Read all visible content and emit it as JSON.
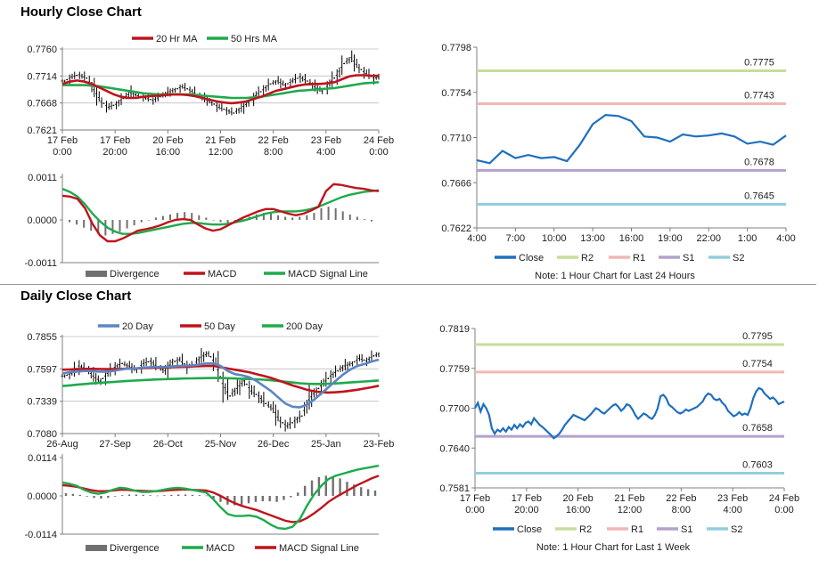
{
  "sections": {
    "hourly_title": "Hourly Close Chart",
    "daily_title": "Daily Close Chart"
  },
  "colors": {
    "red": "#c0131b",
    "green": "#1eaa4c",
    "blue": "#1f6fbf",
    "steel": "#5b86c4",
    "r2": "#c5de9b",
    "r1": "#f3b5b5",
    "s1": "#b3a1cf",
    "s2": "#93cddd",
    "hist": "#707070"
  },
  "chart_data": [
    {
      "id": "hourly-price",
      "type": "line",
      "title": "",
      "legend": [
        "20 Hr MA",
        "50 Hrs MA"
      ],
      "legend_placement": "top",
      "y_ticks": [
        "0.7760",
        "0.7714",
        "0.7668",
        "0.7621"
      ],
      "ylim": [
        0.7621,
        0.776
      ],
      "x_ticks": [
        [
          "17 Feb",
          "0:00"
        ],
        [
          "17 Feb",
          "20:00"
        ],
        [
          "20 Feb",
          "16:00"
        ],
        [
          "21 Feb",
          "12:00"
        ],
        [
          "22 Feb",
          "8:00"
        ],
        [
          "23 Feb",
          "4:00"
        ],
        [
          "24 Feb",
          "0:00"
        ]
      ],
      "close": [
        0.7705,
        0.7712,
        0.7716,
        0.771,
        0.769,
        0.767,
        0.766,
        0.7665,
        0.7675,
        0.7685,
        0.768,
        0.7676,
        0.7672,
        0.7678,
        0.7685,
        0.769,
        0.7695,
        0.769,
        0.7682,
        0.7675,
        0.7668,
        0.766,
        0.7655,
        0.765,
        0.7658,
        0.7668,
        0.768,
        0.769,
        0.77,
        0.7705,
        0.7698,
        0.7705,
        0.7712,
        0.7705,
        0.7695,
        0.7688,
        0.77,
        0.7715,
        0.7735,
        0.7745,
        0.7728,
        0.7718,
        0.771,
        0.7712
      ],
      "series": [
        {
          "name": "20 Hr MA",
          "values": [
            0.77,
            0.7704,
            0.7706,
            0.7704,
            0.77,
            0.7694,
            0.7688,
            0.7682,
            0.7678,
            0.7676,
            0.7676,
            0.7678,
            0.7679,
            0.768,
            0.7681,
            0.7682,
            0.7682,
            0.7681,
            0.7679,
            0.7676,
            0.7673,
            0.767,
            0.7668,
            0.7667,
            0.7668,
            0.767,
            0.7674,
            0.7678,
            0.7683,
            0.7688,
            0.7691,
            0.7694,
            0.7697,
            0.7699,
            0.77,
            0.77,
            0.7701,
            0.7703,
            0.7708,
            0.7713,
            0.7715,
            0.7715,
            0.7714,
            0.7714
          ]
        },
        {
          "name": "50 Hrs MA",
          "values": [
            0.7698,
            0.7698,
            0.7698,
            0.7698,
            0.7697,
            0.7696,
            0.7694,
            0.7692,
            0.769,
            0.7688,
            0.7686,
            0.7684,
            0.7683,
            0.7682,
            0.7682,
            0.7682,
            0.7682,
            0.7682,
            0.7681,
            0.768,
            0.7679,
            0.7678,
            0.7677,
            0.7676,
            0.7676,
            0.7676,
            0.7677,
            0.7678,
            0.768,
            0.7682,
            0.7684,
            0.7686,
            0.7688,
            0.7689,
            0.769,
            0.7691,
            0.7692,
            0.7693,
            0.7695,
            0.7697,
            0.7699,
            0.7701,
            0.7702,
            0.7703
          ]
        }
      ]
    },
    {
      "id": "hourly-macd",
      "type": "line",
      "legend": [
        "Divergence",
        "MACD",
        "MACD Signal Line"
      ],
      "legend_placement": "bottom",
      "y_ticks": [
        "0.0011",
        "0.0000",
        "-0.0011"
      ],
      "ylim": [
        -0.0011,
        0.0011
      ],
      "divergence": [
        -6e-05,
        -0.00012,
        -0.0002,
        -0.00028,
        -0.00036,
        -0.0004,
        -0.00036,
        -0.0003,
        -0.00022,
        -0.00014,
        -6e-05,
        0.0,
        6e-05,
        0.0001,
        0.00014,
        0.00018,
        0.0002,
        0.00018,
        0.00012,
        6e-05,
        0.0,
        -6e-05,
        -0.0001,
        -6e-05,
        2e-05,
        8e-05,
        0.00014,
        0.00018,
        0.00016,
        0.00012,
        8e-05,
        6e-05,
        8e-05,
        0.00012,
        0.00018,
        0.0003,
        0.00034,
        0.0003,
        0.00022,
        0.00014,
        8e-05,
        2e-05,
        -4e-05
      ],
      "series": [
        {
          "name": "MACD",
          "values": [
            0.00062,
            0.0006,
            0.00054,
            0.0003,
            -0.0001,
            -0.0004,
            -0.00055,
            -0.00055,
            -0.00048,
            -0.00038,
            -0.00028,
            -0.00024,
            -0.0002,
            -0.00014,
            -6e-05,
            0.0,
            2e-05,
            0.0,
            -0.00012,
            -0.00022,
            -0.00028,
            -0.00024,
            -0.00014,
            -4e-05,
            6e-05,
            0.00014,
            0.00022,
            0.00028,
            0.00028,
            0.00022,
            0.00016,
            0.00012,
            0.00016,
            0.00024,
            0.00034,
            0.00074,
            0.00092,
            0.0009,
            0.00086,
            0.00082,
            0.0008,
            0.00076,
            0.00074
          ]
        },
        {
          "name": "MACD Signal Line",
          "values": [
            0.0008,
            0.00072,
            0.0006,
            0.0004,
            0.00016,
            -4e-05,
            -0.0002,
            -0.0003,
            -0.00036,
            -0.00036,
            -0.00034,
            -0.0003,
            -0.00026,
            -0.00022,
            -0.00018,
            -0.00014,
            -0.0001,
            -8e-05,
            -8e-05,
            -0.0001,
            -0.00012,
            -0.00012,
            -0.0001,
            -6e-05,
            -2e-05,
            4e-05,
            0.0001,
            0.00016,
            0.0002,
            0.00022,
            0.00022,
            0.00022,
            0.00024,
            0.00028,
            0.00034,
            0.00042,
            0.0005,
            0.00058,
            0.00064,
            0.00068,
            0.00072,
            0.00074,
            0.00076
          ]
        }
      ]
    },
    {
      "id": "hourly-24h",
      "type": "line",
      "note": "Note: 1 Hour Chart for Last 24 Hours",
      "legend": [
        "Close",
        "R2",
        "R1",
        "S1",
        "S2"
      ],
      "legend_placement": "bottom",
      "y_ticks": [
        "0.7798",
        "0.7754",
        "0.7710",
        "0.7666",
        "0.7622"
      ],
      "ylim": [
        0.7622,
        0.7798
      ],
      "x_ticks": [
        "4:00",
        "7:00",
        "10:00",
        "13:00",
        "16:00",
        "19:00",
        "22:00",
        "1:00",
        "4:00"
      ],
      "levels": [
        {
          "name": "R2",
          "value": 0.7775,
          "label": "0.7775"
        },
        {
          "name": "R1",
          "value": 0.7743,
          "label": "0.7743"
        },
        {
          "name": "S1",
          "value": 0.7678,
          "label": "0.7678"
        },
        {
          "name": "S2",
          "value": 0.7645,
          "label": "0.7645"
        }
      ],
      "series": [
        {
          "name": "Close",
          "values": [
            0.7688,
            0.7685,
            0.7697,
            0.769,
            0.7693,
            0.769,
            0.7691,
            0.7687,
            0.7703,
            0.7723,
            0.7732,
            0.7731,
            0.7726,
            0.7711,
            0.771,
            0.7706,
            0.7713,
            0.7711,
            0.7712,
            0.7714,
            0.7711,
            0.7704,
            0.7706,
            0.7703,
            0.7712
          ]
        }
      ]
    },
    {
      "id": "daily-price",
      "type": "line",
      "legend": [
        "20 Day",
        "50 Day",
        "200 Day"
      ],
      "legend_placement": "top",
      "y_ticks": [
        "0.7855",
        "0.7597",
        "0.7339",
        "0.7080"
      ],
      "ylim": [
        0.708,
        0.7855
      ],
      "x_ticks": [
        "26-Aug",
        "27-Sep",
        "26-Oct",
        "25-Nov",
        "26-Dec",
        "25-Jan",
        "23-Feb"
      ],
      "close": [
        0.754,
        0.756,
        0.762,
        0.76,
        0.754,
        0.75,
        0.756,
        0.761,
        0.764,
        0.762,
        0.759,
        0.764,
        0.766,
        0.761,
        0.758,
        0.765,
        0.767,
        0.762,
        0.763,
        0.769,
        0.772,
        0.764,
        0.748,
        0.738,
        0.744,
        0.75,
        0.742,
        0.738,
        0.732,
        0.728,
        0.718,
        0.714,
        0.718,
        0.722,
        0.735,
        0.742,
        0.748,
        0.754,
        0.758,
        0.762,
        0.764,
        0.768,
        0.766,
        0.77,
        0.772
      ],
      "series": [
        {
          "name": "20 Day",
          "values": [
            0.756,
            0.757,
            0.7575,
            0.758,
            0.758,
            0.7575,
            0.7575,
            0.758,
            0.759,
            0.7598,
            0.76,
            0.7605,
            0.761,
            0.7612,
            0.7612,
            0.7615,
            0.762,
            0.7622,
            0.7624,
            0.763,
            0.764,
            0.764,
            0.762,
            0.758,
            0.7555,
            0.7545,
            0.753,
            0.75,
            0.746,
            0.742,
            0.737,
            0.732,
            0.7295,
            0.729,
            0.731,
            0.735,
            0.74,
            0.745,
            0.75,
            0.755,
            0.759,
            0.762,
            0.7635,
            0.7655,
            0.767
          ]
        },
        {
          "name": "50 Day",
          "values": [
            0.759,
            0.7592,
            0.7594,
            0.7596,
            0.7597,
            0.7596,
            0.7595,
            0.7595,
            0.7596,
            0.7598,
            0.76,
            0.7602,
            0.7605,
            0.7607,
            0.7608,
            0.761,
            0.7612,
            0.7614,
            0.7616,
            0.7618,
            0.762,
            0.762,
            0.7612,
            0.76,
            0.759,
            0.758,
            0.757,
            0.7555,
            0.754,
            0.7525,
            0.7505,
            0.7485,
            0.7465,
            0.7448,
            0.743,
            0.7418,
            0.741,
            0.7408,
            0.741,
            0.7415,
            0.7422,
            0.743,
            0.744,
            0.745,
            0.7462
          ]
        },
        {
          "name": "200 Day",
          "values": [
            0.746,
            0.7465,
            0.747,
            0.7475,
            0.748,
            0.7484,
            0.7488,
            0.7492,
            0.7496,
            0.75,
            0.7503,
            0.7506,
            0.7509,
            0.7512,
            0.7514,
            0.7516,
            0.7518,
            0.752,
            0.7521,
            0.7522,
            0.7523,
            0.7524,
            0.7524,
            0.7522,
            0.752,
            0.7518,
            0.7516,
            0.7514,
            0.751,
            0.7506,
            0.75,
            0.7494,
            0.7488,
            0.7482,
            0.7478,
            0.7476,
            0.7476,
            0.7478,
            0.748,
            0.7484,
            0.7488,
            0.7492,
            0.7496,
            0.75,
            0.7504
          ]
        }
      ]
    },
    {
      "id": "daily-macd",
      "type": "line",
      "legend": [
        "Divergence",
        "MACD",
        "MACD Signal Line"
      ],
      "legend_placement": "bottom",
      "y_ticks": [
        "0.0114",
        "0.0000",
        "-0.0114"
      ],
      "ylim": [
        -0.0114,
        0.0114
      ],
      "divergence": [
        0.0008,
        0.0006,
        0.0003,
        -0.0002,
        -0.0006,
        -0.0008,
        -0.0006,
        -0.0002,
        0.0002,
        0.0004,
        0.0004,
        0.0003,
        0.0002,
        0.0001,
        0.0002,
        0.0003,
        0.0004,
        0.0004,
        0.0003,
        0.0002,
        0.0001,
        -0.0008,
        -0.0018,
        -0.0026,
        -0.0028,
        -0.0026,
        -0.0022,
        -0.0018,
        -0.0016,
        -0.0016,
        -0.0018,
        -0.0012,
        -0.0004,
        0.001,
        0.003,
        0.0046,
        0.0056,
        0.006,
        0.0058,
        0.0052,
        0.0042,
        0.0034,
        0.0026,
        0.002,
        0.0016
      ],
      "series": [
        {
          "name": "MACD",
          "values": [
            0.004,
            0.0036,
            0.003,
            0.0018,
            0.001,
            0.0006,
            0.001,
            0.0018,
            0.0024,
            0.0022,
            0.0016,
            0.0012,
            0.0012,
            0.0014,
            0.0018,
            0.0022,
            0.0024,
            0.0022,
            0.0018,
            0.0014,
            0.001,
            -0.001,
            -0.0034,
            -0.0054,
            -0.006,
            -0.006,
            -0.0058,
            -0.0062,
            -0.0072,
            -0.0086,
            -0.0096,
            -0.0098,
            -0.0092,
            -0.007,
            -0.003,
            0.0004,
            0.003,
            0.005,
            0.006,
            0.0066,
            0.0072,
            0.0078,
            0.0082,
            0.0086,
            0.009
          ]
        },
        {
          "name": "MACD Signal Line",
          "values": [
            0.0032,
            0.003,
            0.0027,
            0.0022,
            0.0017,
            0.0014,
            0.0014,
            0.0016,
            0.0018,
            0.0018,
            0.0016,
            0.0015,
            0.0014,
            0.0014,
            0.0015,
            0.0017,
            0.0018,
            0.0019,
            0.0018,
            0.0017,
            0.0016,
            0.001,
            0.0,
            -0.0012,
            -0.0022,
            -0.003,
            -0.0036,
            -0.0042,
            -0.005,
            -0.0058,
            -0.0066,
            -0.0074,
            -0.0078,
            -0.0076,
            -0.0066,
            -0.0052,
            -0.0036,
            -0.0018,
            -0.0004,
            0.0008,
            0.002,
            0.0032,
            0.0042,
            0.0052,
            0.006
          ]
        }
      ]
    },
    {
      "id": "daily-week",
      "type": "line",
      "note": "Note: 1 Hour Chart for Last 1 Week",
      "legend": [
        "Close",
        "R2",
        "R1",
        "S1",
        "S2"
      ],
      "legend_placement": "bottom",
      "y_ticks": [
        "0.7819",
        "0.7759",
        "0.7700",
        "0.7640",
        "0.7581"
      ],
      "ylim": [
        0.7581,
        0.7819
      ],
      "x_ticks": [
        [
          "17 Feb",
          "0:00"
        ],
        [
          "17 Feb",
          "20:00"
        ],
        [
          "20 Feb",
          "16:00"
        ],
        [
          "21 Feb",
          "12:00"
        ],
        [
          "22 Feb",
          "8:00"
        ],
        [
          "23 Feb",
          "4:00"
        ],
        [
          "24 Feb",
          "0:00"
        ]
      ],
      "levels": [
        {
          "name": "R2",
          "value": 0.7795,
          "label": "0.7795"
        },
        {
          "name": "R1",
          "value": 0.7754,
          "label": "0.7754"
        },
        {
          "name": "S1",
          "value": 0.7658,
          "label": "0.7658"
        },
        {
          "name": "S2",
          "value": 0.7603,
          "label": "0.7603"
        }
      ],
      "series": [
        {
          "name": "Close",
          "values": [
            0.77,
            0.7708,
            0.7695,
            0.7706,
            0.77,
            0.769,
            0.767,
            0.7662,
            0.7668,
            0.7665,
            0.767,
            0.7665,
            0.7672,
            0.7668,
            0.7675,
            0.767,
            0.7676,
            0.7672,
            0.7678,
            0.768,
            0.7676,
            0.7685,
            0.768,
            0.7675,
            0.7672,
            0.7668,
            0.7664,
            0.766,
            0.7655,
            0.7658,
            0.7662,
            0.7668,
            0.7675,
            0.768,
            0.7685,
            0.769,
            0.7688,
            0.7686,
            0.7684,
            0.7682,
            0.7686,
            0.769,
            0.7695,
            0.77,
            0.7698,
            0.7694,
            0.7692,
            0.7696,
            0.77,
            0.7704,
            0.7706,
            0.7702,
            0.7696,
            0.77,
            0.7706,
            0.7704,
            0.7698,
            0.769,
            0.7684,
            0.7688,
            0.7692,
            0.769,
            0.7686,
            0.7684,
            0.769,
            0.77,
            0.7718,
            0.772,
            0.7715,
            0.7705,
            0.7702,
            0.7698,
            0.7694,
            0.7692,
            0.7694,
            0.7698,
            0.7696,
            0.7698,
            0.77,
            0.7702,
            0.7706,
            0.771,
            0.7718,
            0.7722,
            0.772,
            0.7714,
            0.7712,
            0.7714,
            0.7708,
            0.7704,
            0.7696,
            0.7692,
            0.7688,
            0.769,
            0.7694,
            0.769,
            0.7692,
            0.769,
            0.77,
            0.7715,
            0.7725,
            0.773,
            0.7728,
            0.7722,
            0.7718,
            0.7714,
            0.7716,
            0.7712,
            0.7706,
            0.7708,
            0.771
          ]
        }
      ]
    }
  ]
}
